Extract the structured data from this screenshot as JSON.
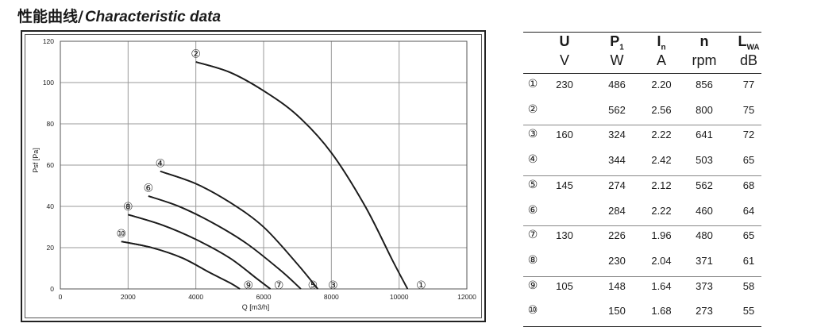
{
  "title": {
    "zh": "性能曲线/",
    "en": "Characteristic data"
  },
  "chart_data": {
    "type": "line",
    "xlabel": "Q [m3/h]",
    "ylabel": "Psf [Pa]",
    "xlim": [
      0,
      12000
    ],
    "ylim": [
      0,
      120
    ],
    "xticks": [
      0,
      2000,
      4000,
      6000,
      8000,
      10000,
      12000
    ],
    "yticks": [
      0,
      20,
      40,
      60,
      80,
      100,
      120
    ],
    "grid": true,
    "series": [
      {
        "name": "①",
        "x": [
          4000,
          5000,
          6000,
          7000,
          8000,
          9000,
          9800,
          10250
        ],
        "y": [
          110,
          105,
          96,
          84,
          66,
          40,
          14,
          0
        ]
      },
      {
        "name": "②",
        "x": [
          4000,
          5000,
          6000,
          7000,
          8000,
          9000,
          9800,
          10250
        ],
        "y": [
          110,
          105,
          96,
          84,
          66,
          40,
          14,
          0
        ]
      },
      {
        "name": "③",
        "x": [
          2950,
          4000,
          5000,
          6000,
          7000,
          7600
        ],
        "y": [
          57,
          51,
          42,
          30,
          12,
          0
        ]
      },
      {
        "name": "④",
        "x": [
          2950,
          4000,
          5000,
          6000,
          7000,
          7600
        ],
        "y": [
          57,
          51,
          42,
          30,
          12,
          0
        ]
      },
      {
        "name": "⑤",
        "x": [
          2600,
          3500,
          4500,
          5500,
          6500,
          7100
        ],
        "y": [
          45,
          40,
          32,
          22,
          9,
          0
        ]
      },
      {
        "name": "⑥",
        "x": [
          2600,
          3500,
          4500,
          5500,
          6500,
          7100
        ],
        "y": [
          45,
          40,
          32,
          22,
          9,
          0
        ]
      },
      {
        "name": "⑦",
        "x": [
          2000,
          3000,
          4000,
          5000,
          5800,
          6200
        ],
        "y": [
          36,
          31,
          24,
          15,
          5,
          0
        ]
      },
      {
        "name": "⑧",
        "x": [
          2000,
          3000,
          4000,
          5000,
          5800,
          6200
        ],
        "y": [
          36,
          31,
          24,
          15,
          5,
          0
        ]
      },
      {
        "name": "⑨",
        "x": [
          1800,
          2700,
          3600,
          4400,
          5000,
          5300
        ],
        "y": [
          23,
          20,
          15,
          8,
          3,
          0
        ]
      },
      {
        "name": "⑩",
        "x": [
          1800,
          2700,
          3600,
          4400,
          5000,
          5300
        ],
        "y": [
          23,
          20,
          15,
          8,
          3,
          0
        ]
      }
    ],
    "curve_labels": [
      {
        "label": "②",
        "x": 4000,
        "y": 114
      },
      {
        "label": "①",
        "x": 10650,
        "y": 2
      },
      {
        "label": "④",
        "x": 2950,
        "y": 61
      },
      {
        "label": "③",
        "x": 8050,
        "y": 2
      },
      {
        "label": "⑥",
        "x": 2600,
        "y": 49
      },
      {
        "label": "⑤",
        "x": 7450,
        "y": 2
      },
      {
        "label": "⑧",
        "x": 2000,
        "y": 40
      },
      {
        "label": "⑦",
        "x": 6450,
        "y": 2
      },
      {
        "label": "⑩",
        "x": 1800,
        "y": 27
      },
      {
        "label": "⑨",
        "x": 5550,
        "y": 2
      }
    ]
  },
  "table": {
    "headers": [
      {
        "sym": "U",
        "sub": "",
        "unit": "V"
      },
      {
        "sym": "P",
        "sub": "1",
        "unit": "W"
      },
      {
        "sym": "I",
        "sub": "n",
        "unit": "A"
      },
      {
        "sym": "n",
        "sub": "",
        "unit": "rpm"
      },
      {
        "sym": "L",
        "sub": "WA",
        "unit": "dB"
      }
    ],
    "rows": [
      {
        "id": "①",
        "U": "230",
        "P1": "486",
        "In": "2.20",
        "n": "856",
        "LWA": "77"
      },
      {
        "id": "②",
        "U": "",
        "P1": "562",
        "In": "2.56",
        "n": "800",
        "LWA": "75"
      },
      {
        "id": "③",
        "U": "160",
        "P1": "324",
        "In": "2.22",
        "n": "641",
        "LWA": "72"
      },
      {
        "id": "④",
        "U": "",
        "P1": "344",
        "In": "2.42",
        "n": "503",
        "LWA": "65"
      },
      {
        "id": "⑤",
        "U": "145",
        "P1": "274",
        "In": "2.12",
        "n": "562",
        "LWA": "68"
      },
      {
        "id": "⑥",
        "U": "",
        "P1": "284",
        "In": "2.22",
        "n": "460",
        "LWA": "64"
      },
      {
        "id": "⑦",
        "U": "130",
        "P1": "226",
        "In": "1.96",
        "n": "480",
        "LWA": "65"
      },
      {
        "id": "⑧",
        "U": "",
        "P1": "230",
        "In": "2.04",
        "n": "371",
        "LWA": "61"
      },
      {
        "id": "⑨",
        "U": "105",
        "P1": "148",
        "In": "1.64",
        "n": "373",
        "LWA": "58"
      },
      {
        "id": "⑩",
        "U": "",
        "P1": "150",
        "In": "1.68",
        "n": "273",
        "LWA": "55"
      }
    ]
  }
}
